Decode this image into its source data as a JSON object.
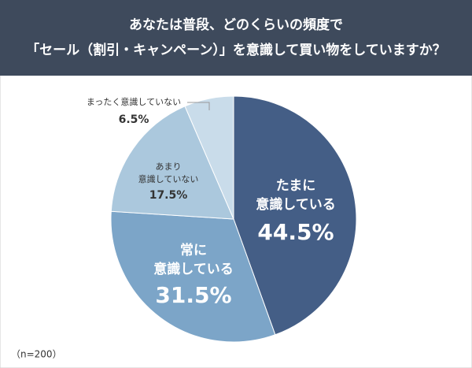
{
  "chart_data": {
    "type": "pie",
    "title": [
      "あなたは普段、どのくらいの頻度で",
      "「セール（割引・キャンペーン）」を意識して買い物をしていますか？"
    ],
    "categories": [
      "たまに\n意識している",
      "常に\n意識している",
      "あまり\n意識していない",
      "まったく意識していない"
    ],
    "values": [
      44.5,
      31.5,
      17.5,
      6.5
    ],
    "value_labels": [
      "44.5%",
      "31.5%",
      "17.5%",
      "6.5%"
    ],
    "colors": [
      "#445e86",
      "#7ca5c8",
      "#abc8dd",
      "#c9dcea"
    ],
    "note": "（n=200）"
  }
}
